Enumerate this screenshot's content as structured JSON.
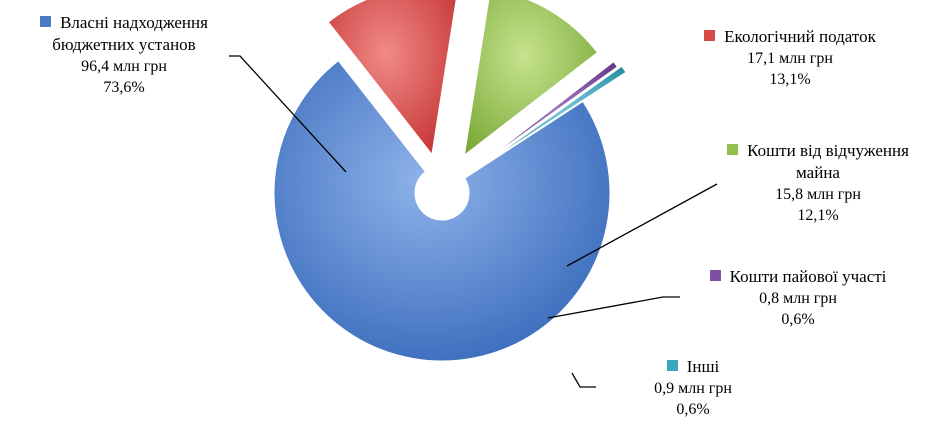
{
  "chart_data": {
    "type": "pie",
    "title": "",
    "legend": "none",
    "slices": [
      {
        "name": "Власні надходження бюджетних установ",
        "value": 96.4,
        "value_label": "96,4 млн грн",
        "percent": 73.6,
        "percent_label": "73,6%",
        "color": "#4a7cc6",
        "exploded": false
      },
      {
        "name": "Екологічний податок",
        "value": 17.1,
        "value_label": "17,1 млн грн",
        "percent": 13.1,
        "percent_label": "13,1%",
        "color": "#d64a48",
        "exploded": true
      },
      {
        "name": "Кошти від відчуження майна",
        "value": 15.8,
        "value_label": "15,8 млн грн",
        "percent": 12.1,
        "percent_label": "12,1%",
        "color": "#92c04a",
        "exploded": true
      },
      {
        "name": "Кошти пайової участі",
        "value": 0.8,
        "value_label": "0,8 млн грн",
        "percent": 0.6,
        "percent_label": "0,6%",
        "color": "#7e4fa3",
        "exploded": true
      },
      {
        "name": "Інші",
        "value": 0.9,
        "value_label": "0,9 млн грн",
        "percent": 0.6,
        "percent_label": "0,6%",
        "color": "#3aa7bd",
        "exploded": true
      }
    ]
  }
}
